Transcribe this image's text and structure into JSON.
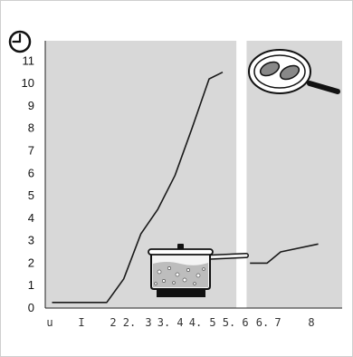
{
  "colors": {
    "plot_background": "#d8d8d8",
    "line": "#1a1a1a",
    "divider": "#ffffff"
  },
  "icons": {
    "top_left": "clock-icon",
    "pot": "cooking-pot-icon",
    "pan": "frying-pan-icon"
  },
  "chart_data": {
    "type": "line",
    "y_ticks": [
      "0",
      "1",
      "2",
      "3",
      "4",
      "5",
      "6",
      "7",
      "8",
      "9",
      "10",
      "11"
    ],
    "x_ticks": [
      "u",
      "I",
      "2",
      "2.",
      "3",
      "3.",
      "4",
      "4.",
      "5",
      "5.",
      "6",
      "6.",
      "7",
      "8"
    ],
    "xlim": [
      0,
      8.7
    ],
    "ylim": [
      0,
      11.9
    ],
    "series": [
      {
        "values": [
          [
            0.2,
            0.25
          ],
          [
            1.8,
            0.25
          ],
          [
            2.3,
            1.3
          ],
          [
            2.8,
            3.3
          ],
          [
            3.3,
            4.4
          ],
          [
            3.8,
            5.9
          ],
          [
            4.3,
            8.0
          ],
          [
            4.8,
            10.2
          ],
          [
            5.2,
            10.5
          ]
        ]
      },
      {
        "values": [
          [
            6.0,
            2.0
          ],
          [
            6.5,
            2.0
          ],
          [
            6.9,
            2.5
          ],
          [
            8.0,
            2.85
          ]
        ]
      }
    ],
    "panels": [
      {
        "x_range": [
          0,
          5.6
        ]
      },
      {
        "x_range": [
          5.9,
          8.7
        ]
      }
    ],
    "grid": false
  }
}
